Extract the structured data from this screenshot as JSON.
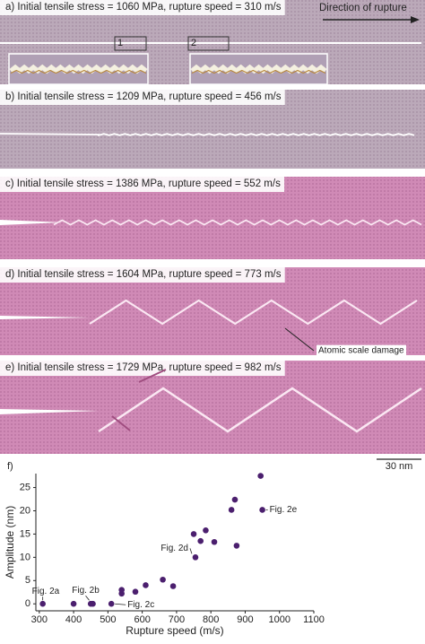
{
  "panels": [
    {
      "label": "a) Initial tensile stress = 1060 MPa, rupture speed = 310 m/s"
    },
    {
      "label": "b) Initial tensile stress = 1209 MPa, rupture speed = 456 m/s"
    },
    {
      "label": "c) Initial tensile stress = 1386 MPa, rupture speed = 552 m/s"
    },
    {
      "label": "d) Initial tensile stress = 1604 MPa, rupture speed = 773 m/s"
    },
    {
      "label": "e) Initial tensile stress = 1729 MPa, rupture speed = 982 m/s"
    }
  ],
  "annotations": {
    "direction": "Direction of rupture",
    "box1": "1",
    "box2": "2",
    "damage": "Atomic scale damage",
    "scale_bar": "30 nm"
  },
  "chart_data": {
    "type": "scatter",
    "panel_label": "f)",
    "x": [
      310,
      400,
      450,
      456,
      510,
      540,
      540,
      580,
      610,
      660,
      690,
      750,
      755,
      770,
      785,
      810,
      860,
      870,
      875,
      945,
      950
    ],
    "values": [
      0,
      0,
      0,
      0,
      0,
      2.2,
      3,
      2.6,
      4,
      5.2,
      3.8,
      15,
      10,
      13.5,
      15.8,
      13.3,
      20.2,
      22.4,
      12.5,
      27.5,
      20.2
    ],
    "color": "#4b1f6e",
    "xlabel": "Rupture speed (m/s)",
    "ylabel": "Amplitude (nm)",
    "xlim": [
      290,
      1100
    ],
    "ylim": [
      -1.5,
      28
    ],
    "xticks": [
      300,
      400,
      500,
      600,
      700,
      800,
      900,
      1000,
      1100
    ],
    "yticks": [
      0,
      5,
      10,
      15,
      20,
      25
    ],
    "annotations": [
      "Fig. 2a",
      "Fig. 2b",
      "Fig. 2c",
      "Fig. 2d",
      "Fig. 2e"
    ]
  }
}
